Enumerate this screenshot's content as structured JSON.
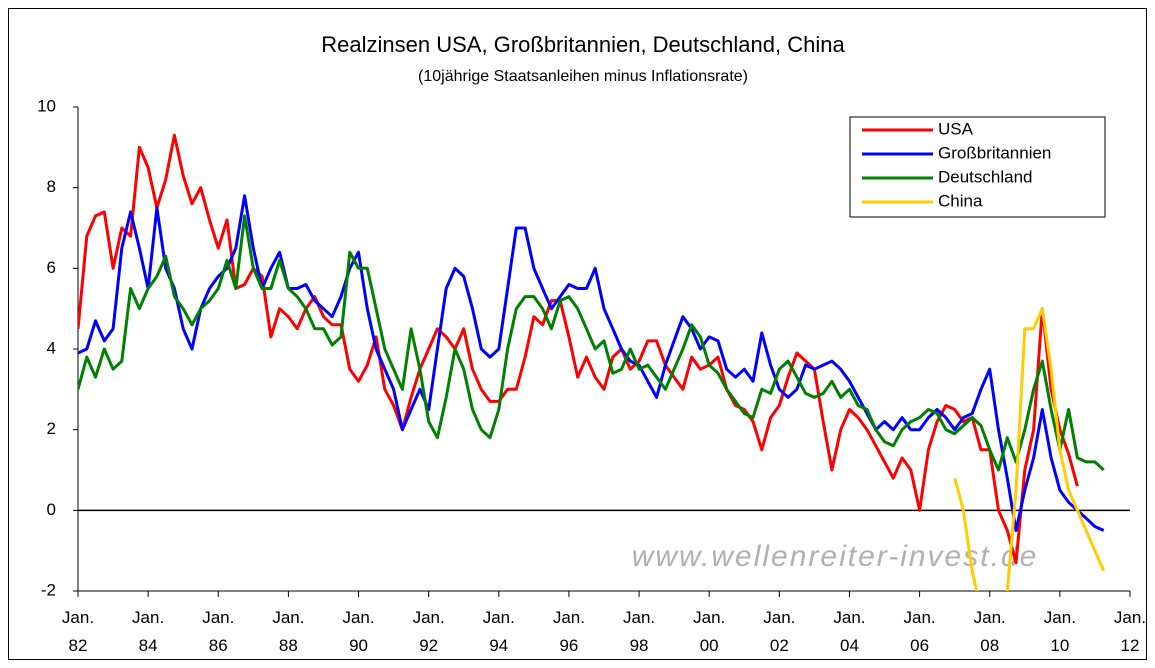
{
  "chart_data": {
    "type": "line",
    "title": "Realzinsen USA, Großbritannien, Deutschland, China",
    "subtitle": "(10jährige Staatsanleihen minus Inflationsrate)",
    "annotation": "www.wellenreiter-invest.de",
    "x": [
      1982,
      1982.25,
      1982.5,
      1982.75,
      1983,
      1983.25,
      1983.5,
      1983.75,
      1984,
      1984.25,
      1984.5,
      1984.75,
      1985,
      1985.25,
      1985.5,
      1985.75,
      1986,
      1986.25,
      1986.5,
      1986.75,
      1987,
      1987.25,
      1987.5,
      1987.75,
      1988,
      1988.25,
      1988.5,
      1988.75,
      1989,
      1989.25,
      1989.5,
      1989.75,
      1990,
      1990.25,
      1990.5,
      1990.75,
      1991,
      1991.25,
      1991.5,
      1991.75,
      1992,
      1992.25,
      1992.5,
      1992.75,
      1993,
      1993.25,
      1993.5,
      1993.75,
      1994,
      1994.25,
      1994.5,
      1994.75,
      1995,
      1995.25,
      1995.5,
      1995.75,
      1996,
      1996.25,
      1996.5,
      1996.75,
      1997,
      1997.25,
      1997.5,
      1997.75,
      1998,
      1998.25,
      1998.5,
      1998.75,
      1999,
      1999.25,
      1999.5,
      1999.75,
      2000,
      2000.25,
      2000.5,
      2000.75,
      2001,
      2001.25,
      2001.5,
      2001.75,
      2002,
      2002.25,
      2002.5,
      2002.75,
      2003,
      2003.25,
      2003.5,
      2003.75,
      2004,
      2004.25,
      2004.5,
      2004.75,
      2005,
      2005.25,
      2005.5,
      2005.75,
      2006,
      2006.25,
      2006.5,
      2006.75,
      2007,
      2007.25,
      2007.5,
      2007.75,
      2008,
      2008.25,
      2008.5,
      2008.75,
      2009,
      2009.25,
      2009.5,
      2009.75,
      2010,
      2010.25,
      2010.5,
      2010.75,
      2011,
      2011.25
    ],
    "series": [
      {
        "name": "USA",
        "color": "#ff0000",
        "values": [
          4.5,
          6.8,
          7.3,
          7.4,
          6.0,
          7.0,
          6.8,
          9.0,
          8.5,
          7.5,
          8.2,
          9.3,
          8.3,
          7.6,
          8.0,
          7.2,
          6.5,
          7.2,
          5.5,
          5.6,
          6.0,
          5.8,
          4.3,
          5.0,
          4.8,
          4.5,
          5.0,
          5.3,
          4.8,
          4.6,
          4.6,
          3.5,
          3.2,
          3.6,
          4.3,
          3.0,
          2.6,
          2.0,
          2.8,
          3.5,
          4.0,
          4.5,
          4.3,
          4.0,
          4.5,
          3.5,
          3.0,
          2.7,
          2.7,
          3.0,
          3.0,
          3.8,
          4.8,
          4.6,
          5.2,
          5.2,
          4.3,
          3.3,
          3.8,
          3.3,
          3.0,
          3.8,
          4.0,
          3.5,
          3.7,
          4.2,
          4.2,
          3.6,
          3.3,
          3.0,
          3.8,
          3.5,
          3.6,
          3.8,
          3.0,
          2.6,
          2.5,
          2.2,
          1.5,
          2.3,
          2.6,
          3.3,
          3.9,
          3.7,
          3.5,
          2.2,
          1.0,
          2.0,
          2.5,
          2.3,
          2.0,
          1.6,
          1.2,
          0.8,
          1.3,
          1.0,
          0.0,
          1.5,
          2.2,
          2.6,
          2.5,
          2.2,
          2.3,
          1.5,
          1.5,
          0.0,
          -0.5,
          -1.3,
          1.0,
          2.0,
          5.0,
          3.0,
          2.0,
          1.4,
          0.6,
          null,
          null,
          null
        ]
      },
      {
        "name": "Großbritannien",
        "color": "#0000ff",
        "values": [
          3.9,
          4.0,
          4.7,
          4.2,
          4.5,
          6.5,
          7.4,
          6.5,
          5.5,
          7.5,
          6.0,
          5.5,
          4.5,
          4.0,
          5.0,
          5.5,
          5.8,
          6.0,
          6.5,
          7.8,
          6.5,
          5.5,
          6.0,
          6.4,
          5.5,
          5.5,
          5.6,
          5.2,
          5.0,
          4.8,
          5.3,
          6.0,
          6.4,
          5.0,
          4.0,
          3.5,
          3.0,
          2.0,
          2.5,
          3.0,
          2.5,
          4.0,
          5.5,
          6.0,
          5.8,
          5.0,
          4.0,
          3.8,
          4.0,
          5.5,
          7.0,
          7.0,
          6.0,
          5.5,
          5.0,
          5.3,
          5.6,
          5.5,
          5.5,
          6.0,
          5.0,
          4.5,
          4.0,
          3.7,
          3.6,
          3.2,
          2.8,
          3.6,
          4.2,
          4.8,
          4.5,
          4.0,
          4.3,
          4.2,
          3.5,
          3.3,
          3.5,
          3.2,
          4.4,
          3.6,
          3.0,
          2.8,
          3.0,
          3.6,
          3.5,
          3.6,
          3.7,
          3.5,
          3.2,
          2.8,
          2.4,
          2.0,
          2.2,
          2.0,
          2.3,
          2.0,
          2.0,
          2.3,
          2.5,
          2.3,
          2.0,
          2.3,
          2.4,
          3.0,
          3.5,
          2.0,
          0.8,
          -0.5,
          0.5,
          1.3,
          2.5,
          1.3,
          0.5,
          0.2,
          0.0,
          -0.2,
          -0.4,
          -0.5
        ]
      },
      {
        "name": "Deutschland",
        "color": "#008000",
        "values": [
          3.0,
          3.8,
          3.3,
          4.0,
          3.5,
          3.7,
          5.5,
          5.0,
          5.5,
          5.8,
          6.3,
          5.3,
          5.0,
          4.6,
          5.0,
          5.2,
          5.5,
          6.2,
          5.5,
          7.3,
          6.0,
          5.5,
          5.5,
          6.2,
          5.5,
          5.3,
          5.0,
          4.5,
          4.5,
          4.1,
          4.3,
          6.4,
          6.0,
          6.0,
          5.0,
          4.0,
          3.5,
          3.0,
          4.5,
          3.5,
          2.2,
          1.8,
          2.8,
          4.0,
          3.5,
          2.5,
          2.0,
          1.8,
          2.5,
          4.0,
          5.0,
          5.3,
          5.3,
          5.0,
          4.5,
          5.2,
          5.3,
          5.0,
          4.5,
          4.0,
          4.2,
          3.4,
          3.5,
          4.0,
          3.5,
          3.6,
          3.3,
          3.0,
          3.5,
          4.0,
          4.6,
          4.3,
          3.6,
          3.4,
          3.0,
          2.7,
          2.4,
          2.3,
          3.0,
          2.9,
          3.5,
          3.7,
          3.3,
          2.9,
          2.8,
          2.9,
          3.2,
          2.8,
          3.0,
          2.6,
          2.5,
          2.0,
          1.7,
          1.6,
          2.0,
          2.2,
          2.3,
          2.5,
          2.4,
          2.0,
          1.9,
          2.1,
          2.3,
          2.1,
          1.5,
          1.0,
          1.8,
          1.2,
          2.0,
          3.0,
          3.7,
          2.5,
          1.5,
          2.5,
          1.3,
          1.2,
          1.2,
          1.0
        ]
      },
      {
        "name": "China",
        "color": "#ffcc00",
        "values": [
          null,
          null,
          null,
          null,
          null,
          null,
          null,
          null,
          null,
          null,
          null,
          null,
          null,
          null,
          null,
          null,
          null,
          null,
          null,
          null,
          null,
          null,
          null,
          null,
          null,
          null,
          null,
          null,
          null,
          null,
          null,
          null,
          null,
          null,
          null,
          null,
          null,
          null,
          null,
          null,
          null,
          null,
          null,
          null,
          null,
          null,
          null,
          null,
          null,
          null,
          null,
          null,
          null,
          null,
          null,
          null,
          null,
          null,
          null,
          null,
          null,
          null,
          null,
          null,
          null,
          null,
          null,
          null,
          null,
          null,
          null,
          null,
          null,
          null,
          null,
          null,
          null,
          null,
          null,
          null,
          null,
          null,
          null,
          null,
          null,
          null,
          null,
          null,
          null,
          null,
          null,
          null,
          null,
          null,
          null,
          null,
          null,
          null,
          null,
          null,
          0.8,
          0.0,
          -1.5,
          -2.5,
          -2.5,
          -2.3,
          -2.0,
          0.5,
          4.5,
          4.5,
          5.0,
          3.5,
          1.5,
          0.5,
          0.0,
          -0.5,
          -1.0,
          -1.5
        ]
      }
    ],
    "xlim": [
      1982,
      2012
    ],
    "xticks": [
      {
        "value": 1982,
        "label": "Jan. 82"
      },
      {
        "value": 1984,
        "label": "Jan. 84"
      },
      {
        "value": 1986,
        "label": "Jan. 86"
      },
      {
        "value": 1988,
        "label": "Jan. 88"
      },
      {
        "value": 1990,
        "label": "Jan. 90"
      },
      {
        "value": 1992,
        "label": "Jan. 92"
      },
      {
        "value": 1994,
        "label": "Jan. 94"
      },
      {
        "value": 1996,
        "label": "Jan. 96"
      },
      {
        "value": 1998,
        "label": "Jan. 98"
      },
      {
        "value": 2000,
        "label": "Jan. 00"
      },
      {
        "value": 2002,
        "label": "Jan. 02"
      },
      {
        "value": 2004,
        "label": "Jan. 04"
      },
      {
        "value": 2006,
        "label": "Jan. 06"
      },
      {
        "value": 2008,
        "label": "Jan. 08"
      },
      {
        "value": 2010,
        "label": "Jan. 10"
      },
      {
        "value": 2012,
        "label": "Jan. 12"
      }
    ],
    "ylim": [
      -2,
      10
    ],
    "yticks": [
      -2,
      0,
      2,
      4,
      6,
      8,
      10
    ],
    "grid": false,
    "legend": "top-right"
  }
}
